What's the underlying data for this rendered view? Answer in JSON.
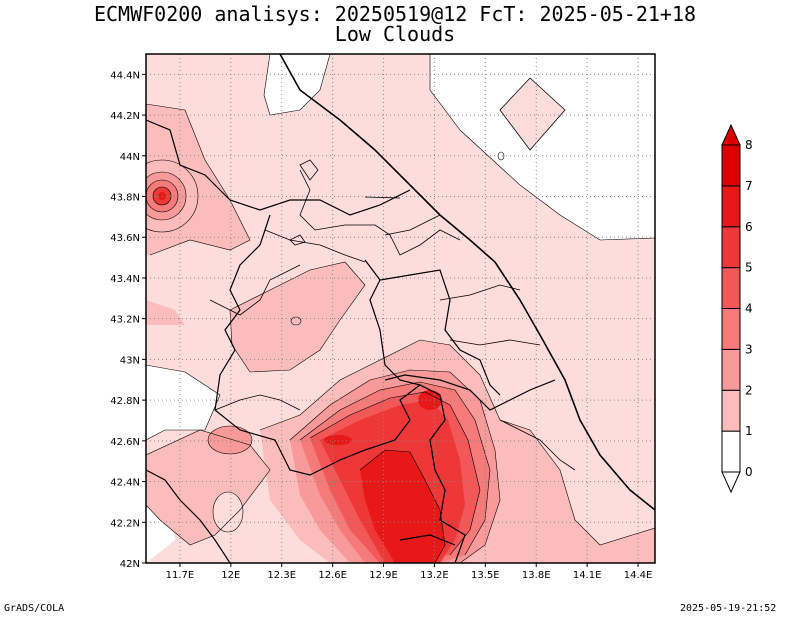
{
  "title": {
    "line1": "ECMWF0200 analisys: 20250519@12 FcT: 2025-05-21+18",
    "line2": "Low Clouds"
  },
  "footer": {
    "left": "GrADS/COLA",
    "right": "2025-05-19-21:52"
  },
  "map": {
    "lat_labels": [
      "44.4N",
      "44.2N",
      "44N",
      "43.8N",
      "43.6N",
      "43.4N",
      "43.2N",
      "43N",
      "42.8N",
      "42.6N",
      "42.4N",
      "42.2N",
      "42N"
    ],
    "lat_values": [
      44.4,
      44.2,
      44.0,
      43.8,
      43.6,
      43.4,
      43.2,
      43.0,
      42.8,
      42.6,
      42.4,
      42.2,
      42.0
    ],
    "lon_labels": [
      "11.7E",
      "12E",
      "12.3E",
      "12.6E",
      "12.9E",
      "13.2E",
      "13.5E",
      "13.8E",
      "14.1E",
      "14.4E"
    ],
    "lon_values": [
      11.7,
      12.0,
      12.3,
      12.6,
      12.9,
      13.2,
      13.5,
      13.8,
      14.1,
      14.4
    ],
    "lon_range": [
      11.5,
      14.5
    ],
    "lat_range": [
      42.0,
      44.5
    ]
  },
  "colorbar": {
    "labels": [
      "0",
      "1",
      "2",
      "3",
      "4",
      "5",
      "6",
      "7",
      "8"
    ],
    "levels": [
      0,
      1,
      2,
      3,
      4,
      5,
      6,
      7,
      8
    ],
    "colors": [
      "#ffffff",
      "#fddcdc",
      "#fbbcbc",
      "#f89a9a",
      "#f57a7a",
      "#f25858",
      "#ee3838",
      "#e81818",
      "#dd0000"
    ]
  }
}
